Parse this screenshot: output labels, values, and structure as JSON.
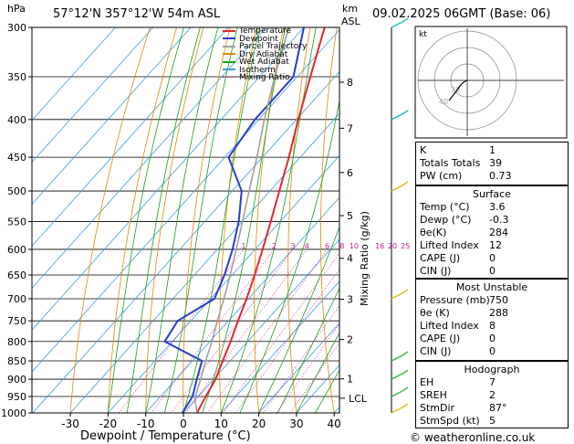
{
  "header": {
    "hpa_unit": "hPa",
    "km_unit_line1": "km",
    "km_unit_line2": "ASL",
    "location": "57°12'N  357°12'W  54m  ASL",
    "datetime": "09.02.2025  06GMT  (Base: 06)"
  },
  "chart_data": {
    "type": "line",
    "title": "57°12'N  357°12'W  54m  ASL",
    "xlabel": "Dewpoint / Temperature (°C)",
    "ylabel_right": "Mixing Ratio (g/kg)",
    "y_unit": "hPa",
    "y_scale": "log",
    "xlim": [
      -35,
      40
    ],
    "ylim": [
      1000,
      300
    ],
    "x_ticks": [
      -30,
      -20,
      -10,
      0,
      10,
      20,
      30,
      40
    ],
    "pressure_ticks": [
      300,
      350,
      400,
      450,
      500,
      550,
      600,
      650,
      700,
      750,
      800,
      850,
      900,
      950,
      1000
    ],
    "km_ticks": [
      {
        "km": "8",
        "p": 356
      },
      {
        "km": "7",
        "p": 411
      },
      {
        "km": "6",
        "p": 472
      },
      {
        "km": "5",
        "p": 540
      },
      {
        "km": "4",
        "p": 617
      },
      {
        "km": "3",
        "p": 701
      },
      {
        "km": "2",
        "p": 795
      },
      {
        "km": "1",
        "p": 899
      }
    ],
    "lcl": {
      "label": "LCL",
      "p": 955
    },
    "mixing_ratio_labels": [
      "1",
      "2",
      "3",
      "4",
      "6",
      "8",
      "10",
      "16",
      "20",
      "25"
    ],
    "mixing_ratio_values": [
      1,
      2,
      3,
      4,
      6,
      8,
      10,
      16,
      20,
      25
    ],
    "legend": [
      "Temperature",
      "Dewpoint",
      "Parcel Trajectory",
      "Dry Adiabat",
      "Wet Adiabat",
      "Isotherm",
      "Mixing Ratio"
    ],
    "legend_position": "top-right",
    "colors": {
      "Temperature": "#e8252a",
      "Dewpoint": "#2a3bd6",
      "Parcel Trajectory": "#a0a0a0",
      "Dry Adiabat": "#e08a00",
      "Wet Adiabat": "#1aa01a",
      "Isotherm": "#3aa0e0",
      "Mixing Ratio": "#d01890"
    },
    "series": [
      {
        "name": "Temperature",
        "p": [
          1000,
          950,
          900,
          850,
          800,
          750,
          700,
          650,
          600,
          550,
          500,
          450,
          400,
          350,
          300
        ],
        "t": [
          3.6,
          2.0,
          0.5,
          -2.0,
          -4.5,
          -7.5,
          -10.5,
          -14.0,
          -18.0,
          -22.5,
          -27.5,
          -33.0,
          -39.5,
          -46.5,
          -54.5
        ]
      },
      {
        "name": "Dewpoint",
        "p": [
          1000,
          950,
          900,
          850,
          800,
          750,
          700,
          650,
          600,
          550,
          500,
          450,
          400,
          350,
          300
        ],
        "t": [
          -0.3,
          -1.5,
          -4.5,
          -7.5,
          -22.0,
          -23.5,
          -19.0,
          -22.0,
          -26.0,
          -31.0,
          -37.5,
          -49.0,
          -51.0,
          -51.0,
          -60.0
        ]
      },
      {
        "name": "Parcel Trajectory",
        "p": [
          1000,
          955,
          900,
          850,
          800,
          750,
          700,
          650,
          600,
          550,
          500,
          450,
          400,
          350,
          300
        ],
        "t": [
          3.6,
          -0.5,
          -3.5,
          -6.5,
          -9.5,
          -13.0,
          -16.5,
          -20.5,
          -25.0,
          -30.0,
          -35.5,
          -41.5,
          -48.5,
          -56.0,
          -64.0
        ]
      }
    ],
    "dry_adiabats_theta_c": [
      -30,
      -20,
      -10,
      0,
      10,
      20,
      30,
      40,
      50,
      60,
      70,
      80,
      90,
      100,
      110,
      120,
      130,
      140,
      150
    ],
    "wet_adiabats_theta_c": [
      -20,
      -15,
      -10,
      -5,
      0,
      5,
      10,
      15,
      20,
      25,
      30,
      35
    ],
    "isotherms_c": [
      -110,
      -100,
      -90,
      -80,
      -70,
      -60,
      -50,
      -40,
      -30,
      -20,
      -10,
      0,
      10,
      20,
      30,
      40
    ],
    "wind_barbs_p": [
      300,
      400,
      500,
      700,
      850,
      900,
      950,
      1000
    ]
  },
  "hodograph": {
    "unit_label": "kt",
    "ring_labels": [
      "20",
      "40"
    ],
    "trace": [
      [
        0,
        0
      ],
      [
        -2,
        -1
      ],
      [
        -4,
        -3
      ],
      [
        -6,
        -6
      ],
      [
        -10,
        -11
      ]
    ]
  },
  "indices": {
    "rows": [
      {
        "label": "K",
        "value": "1"
      },
      {
        "label": "Totals Totals",
        "value": "39"
      },
      {
        "label": "PW (cm)",
        "value": "0.73"
      }
    ]
  },
  "surface": {
    "title": "Surface",
    "rows": [
      {
        "label": "Temp (°C)",
        "value": "3.6"
      },
      {
        "label": "Dewp (°C)",
        "value": "-0.3"
      },
      {
        "label": "θe(K)",
        "value": "284"
      },
      {
        "label": "Lifted Index",
        "value": "12"
      },
      {
        "label": "CAPE (J)",
        "value": "0"
      },
      {
        "label": "CIN (J)",
        "value": "0"
      }
    ]
  },
  "most_unstable": {
    "title": "Most Unstable",
    "rows": [
      {
        "label": "Pressure (mb)",
        "value": "750"
      },
      {
        "label": "θe (K)",
        "value": "288"
      },
      {
        "label": "Lifted Index",
        "value": "8"
      },
      {
        "label": "CAPE (J)",
        "value": "0"
      },
      {
        "label": "CIN (J)",
        "value": "0"
      }
    ]
  },
  "hodograph_table": {
    "title": "Hodograph",
    "rows": [
      {
        "label": "EH",
        "value": "7"
      },
      {
        "label": "SREH",
        "value": "2"
      },
      {
        "label": "StmDir",
        "value": "87°"
      },
      {
        "label": "StmSpd (kt)",
        "value": "5"
      }
    ]
  },
  "footer": {
    "credit": "© weatheronline.co.uk"
  }
}
